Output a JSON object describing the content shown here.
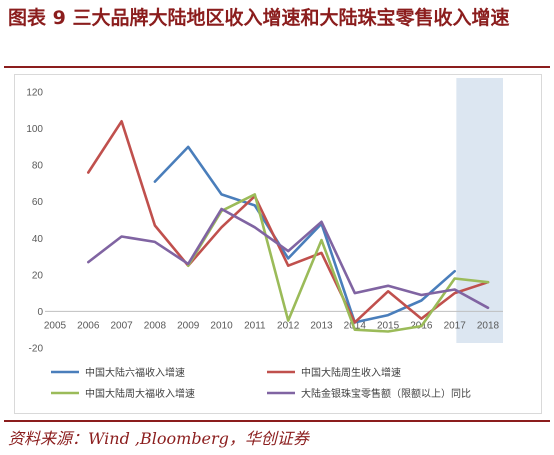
{
  "header": {
    "title": "图表 9   三大品牌大陆地区收入增速和大陆珠宝零售收入增速"
  },
  "footer": {
    "source": "资料来源：Wind ,Bloomberg，华创证券"
  },
  "colors": {
    "accent": "#8b1d1d",
    "highlight": "#dce6f1",
    "grid": "#d9d9d9"
  },
  "chart_data": {
    "type": "line",
    "title": "",
    "xlabel": "",
    "ylabel": "",
    "x": [
      "2005",
      "2006",
      "2007",
      "2008",
      "2009",
      "2010",
      "2011",
      "2012",
      "2013",
      "2014",
      "2015",
      "2016",
      "2017",
      "2018"
    ],
    "ylim": [
      -20,
      120
    ],
    "yticks": [
      -20,
      0,
      20,
      40,
      60,
      80,
      100,
      120
    ],
    "grid": false,
    "legend_position": "bottom",
    "highlighted_range": [
      "2018",
      "2018"
    ],
    "series": [
      {
        "name": "中国大陆六福收入增速",
        "color": "#4a7ebb",
        "values": [
          null,
          null,
          null,
          71,
          90,
          64,
          58,
          29,
          48,
          -6,
          -2,
          6,
          22,
          null
        ]
      },
      {
        "name": "中国大陆周生收入增速",
        "color": "#c0504d",
        "values": [
          null,
          76,
          104,
          47,
          25,
          46,
          63,
          25,
          32,
          -6,
          11,
          -4,
          10,
          16
        ]
      },
      {
        "name": "中国大陆周大福收入增速",
        "color": "#9bbb59",
        "values": [
          null,
          null,
          null,
          null,
          25,
          55,
          64,
          -5,
          39,
          -10,
          -11,
          -8,
          18,
          16
        ]
      },
      {
        "name": "大陆金银珠宝零售额（限额以上）同比",
        "color": "#8064a2",
        "values": [
          null,
          27,
          41,
          38,
          26,
          56,
          46,
          33,
          49,
          10,
          14,
          9,
          12,
          2
        ]
      }
    ]
  }
}
